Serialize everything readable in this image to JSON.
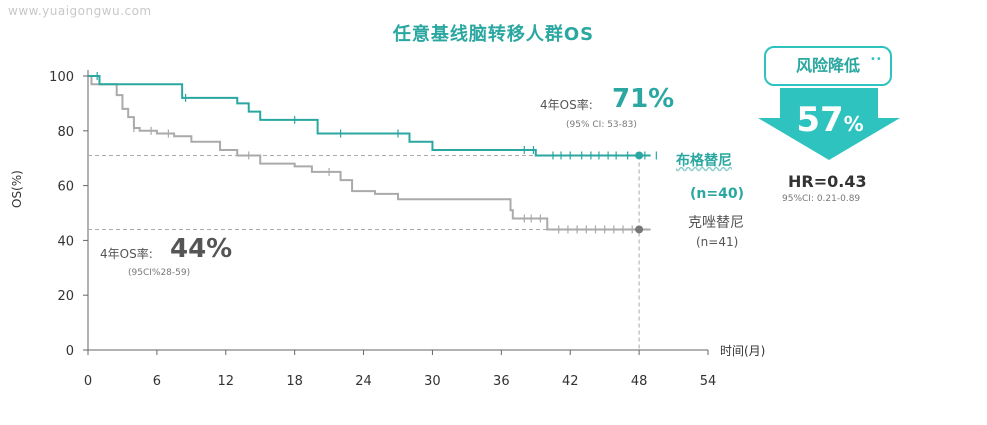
{
  "watermark": "www.yuaigongwu.com",
  "chart_data": {
    "type": "line",
    "title": "任意基线脑转移人群OS",
    "xlabel": "时间(月)",
    "ylabel": "OS(%)",
    "xlim": [
      0,
      54
    ],
    "ylim": [
      0,
      100
    ],
    "xticks": [
      0,
      6,
      12,
      18,
      24,
      30,
      36,
      42,
      48,
      54
    ],
    "yticks": [
      0,
      20,
      40,
      60,
      80,
      100
    ],
    "grid": false,
    "series": [
      {
        "name": "布格替尼",
        "n_label": "(n=40)",
        "color": "#2aa7a0",
        "x": [
          0,
          0.5,
          1,
          2,
          8,
          8.2,
          13,
          14,
          15,
          20,
          28,
          30,
          39,
          40,
          49
        ],
        "y": [
          100,
          100,
          97,
          97,
          97,
          92,
          90,
          87,
          84,
          79,
          76,
          73,
          71,
          71,
          71
        ],
        "censor_x": [
          0.8,
          8.5,
          18,
          22,
          27,
          38,
          38.8,
          40.5,
          41.2,
          42,
          43,
          43.8,
          44.5,
          45.3,
          46,
          47,
          48.5,
          49.5
        ],
        "rate_label": "4年OS率: ",
        "rate_value": "71%",
        "ci_label": "(95% CI: 53-83)"
      },
      {
        "name": "克唑替尼",
        "n_label": "(n=41)",
        "color": "#aaaaaa",
        "x": [
          0,
          0.3,
          1,
          2.5,
          3,
          3.5,
          4,
          4.5,
          6,
          7.5,
          9,
          11.5,
          13,
          15,
          18,
          19.5,
          22,
          23,
          25,
          27,
          36,
          36.8,
          37,
          40,
          49
        ],
        "y": [
          100,
          97,
          97,
          93,
          88,
          85,
          81,
          80,
          79,
          78,
          76,
          73,
          71,
          68,
          67,
          65,
          62,
          58,
          57,
          55,
          55,
          51,
          48,
          44,
          44
        ],
        "censor_x": [
          4,
          5.5,
          7,
          14,
          21,
          38,
          38.6,
          39.4,
          41,
          41.8,
          42.6,
          43.4,
          44.2,
          45,
          45.8,
          46.6,
          47.4
        ],
        "rate_label": "4年OS率: ",
        "rate_value": "44%",
        "ci_label": "(95CI%28-59)"
      }
    ],
    "reference_lines": [
      {
        "y": 71,
        "x_end": 48
      },
      {
        "y": 44,
        "x_end": 48
      },
      {
        "x": 48,
        "y_end": 71
      }
    ],
    "risk_reduction": {
      "label": "风险降低",
      "value": "57",
      "unit": "%"
    },
    "hr": {
      "label": "HR=0.43",
      "ci": "95%CI: 0.21-0.89"
    },
    "colors": {
      "accent": "#2aa7a0",
      "arrow": "#2ec3bf"
    }
  }
}
